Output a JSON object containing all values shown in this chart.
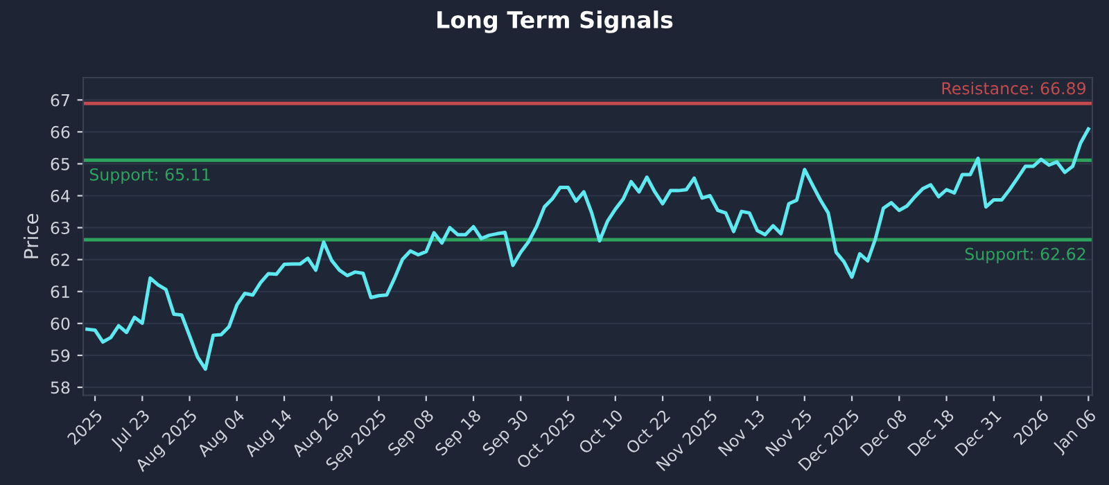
{
  "chart_data": {
    "type": "line",
    "title": "Long Term Signals",
    "ylabel": "Price",
    "categories": [
      null,
      "2025",
      null,
      null,
      null,
      null,
      null,
      "Jul 23",
      null,
      null,
      null,
      null,
      null,
      "Aug 2025",
      null,
      null,
      null,
      null,
      null,
      "Aug 04",
      null,
      null,
      null,
      null,
      null,
      "Aug 14",
      null,
      null,
      null,
      null,
      null,
      "Aug 26",
      null,
      null,
      null,
      null,
      null,
      "Sep 2025",
      null,
      null,
      null,
      null,
      null,
      "Sep 08",
      null,
      null,
      null,
      null,
      null,
      "Sep 18",
      null,
      null,
      null,
      null,
      null,
      "Sep 30",
      null,
      null,
      null,
      null,
      null,
      "Oct 2025",
      null,
      null,
      null,
      null,
      null,
      "Oct 10",
      null,
      null,
      null,
      null,
      null,
      "Oct 22",
      null,
      null,
      null,
      null,
      null,
      "Nov 2025",
      null,
      null,
      null,
      null,
      null,
      "Nov 13",
      null,
      null,
      null,
      null,
      null,
      "Nov 25",
      null,
      null,
      null,
      null,
      null,
      "Dec 2025",
      null,
      null,
      null,
      null,
      null,
      "Dec 08",
      null,
      null,
      null,
      null,
      null,
      "Dec 18",
      null,
      null,
      null,
      null,
      null,
      "Dec 31",
      null,
      null,
      null,
      null,
      null,
      "2026",
      null,
      null,
      null,
      null,
      null,
      "Jan 06"
    ],
    "series": [
      {
        "color": "#5ee8f0",
        "values": [
          59.82,
          59.79,
          59.42,
          59.56,
          59.93,
          59.72,
          60.19,
          60.01,
          61.42,
          61.21,
          61.06,
          60.29,
          60.26,
          59.61,
          58.95,
          58.57,
          59.63,
          59.65,
          59.9,
          60.58,
          60.94,
          60.89,
          61.28,
          61.56,
          61.54,
          61.85,
          61.86,
          61.86,
          62.04,
          61.67,
          62.55,
          61.98,
          61.67,
          61.5,
          61.61,
          61.57,
          60.81,
          60.87,
          60.89,
          61.42,
          62.01,
          62.27,
          62.15,
          62.25,
          62.84,
          62.52,
          63.0,
          62.78,
          62.78,
          63.03,
          62.66,
          62.76,
          62.81,
          62.85,
          61.82,
          62.23,
          62.56,
          63.03,
          63.65,
          63.9,
          64.26,
          64.26,
          63.83,
          64.12,
          63.46,
          62.59,
          63.2,
          63.58,
          63.9,
          64.44,
          64.12,
          64.58,
          64.12,
          63.75,
          64.16,
          64.16,
          64.19,
          64.55,
          63.93,
          64.0,
          63.54,
          63.46,
          62.88,
          63.51,
          63.46,
          62.91,
          62.78,
          63.06,
          62.81,
          63.75,
          63.86,
          64.82,
          64.34,
          63.87,
          63.46,
          62.23,
          61.93,
          61.45,
          62.18,
          61.96,
          62.66,
          63.61,
          63.78,
          63.54,
          63.68,
          63.97,
          64.22,
          64.34,
          63.97,
          64.19,
          64.09,
          64.66,
          64.66,
          65.17,
          63.65,
          63.87,
          63.87,
          64.19,
          64.55,
          64.92,
          64.92,
          65.14,
          64.96,
          65.06,
          64.73,
          64.92,
          65.65,
          66.09
        ]
      }
    ],
    "ylim": [
      57.75,
      67.7
    ],
    "yticks": [
      58,
      59,
      60,
      61,
      62,
      63,
      64,
      65,
      66,
      67
    ],
    "grid": "y",
    "marker": "none",
    "line_style": "solid",
    "ref_lines": [
      {
        "axis": "y",
        "value": 66.89,
        "label": "Resistance: 66.89",
        "color": "#c44a4e"
      },
      {
        "axis": "y",
        "value": 65.11,
        "label": "Support: 65.11",
        "color": "#2ea35f"
      },
      {
        "axis": "y",
        "value": 62.62,
        "label": "Support: 62.62",
        "color": "#2ea35f"
      }
    ]
  }
}
